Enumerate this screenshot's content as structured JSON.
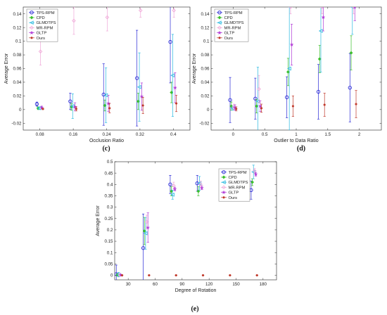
{
  "colors": {
    "TPS-RPM": "#2b2bd6",
    "CPD": "#3bbf2b",
    "GLMDTPS": "#29b9e0",
    "MR-RPM": "#f0a8d8",
    "GLTP": "#b23ad6",
    "Ours": "#c0392b"
  },
  "markers": {
    "TPS-RPM": "circle",
    "CPD": "diamond",
    "GLMDTPS": "triangle-left",
    "MR-RPM": "diamond-open",
    "GLTP": "star",
    "Ours": "dot"
  },
  "chart_data": [
    {
      "type": "scatter",
      "caption": "(c)",
      "xlabel": "Occlusion Ratio",
      "ylabel": "Average Error",
      "xlim": [
        0.04,
        0.44
      ],
      "ylim": [
        -0.03,
        0.15
      ],
      "xticks": [
        "0.08",
        "0.16",
        "0.24",
        "0.32",
        "0.4"
      ],
      "xtick_values": [
        0.08,
        0.16,
        0.24,
        0.32,
        0.4
      ],
      "yticks": [
        "-0.02",
        "0",
        "0.02",
        "0.04",
        "0.06",
        "0.08",
        "0.1",
        "0.12",
        "0.14"
      ],
      "ytick_values": [
        -0.02,
        0,
        0.02,
        0.04,
        0.06,
        0.08,
        0.1,
        0.12,
        0.14
      ],
      "legend": [
        "TPS-RPM",
        "CPD",
        "GLMDTPS",
        "MR-RPM",
        "GLTP",
        "Ours"
      ],
      "legend_position": "top-left",
      "series": [
        {
          "name": "TPS-RPM",
          "x": [
            0.08,
            0.16,
            0.24,
            0.32,
            0.4
          ],
          "y": [
            0.008,
            0.012,
            0.022,
            0.046,
            0.099
          ],
          "err": [
            0.003,
            0.012,
            0.045,
            0.07,
            0.06
          ]
        },
        {
          "name": "CPD",
          "x": [
            0.08,
            0.16,
            0.24,
            0.32,
            0.4
          ],
          "y": [
            0.002,
            0.004,
            0.006,
            0.012,
            0.025
          ],
          "err": [
            0.002,
            0.005,
            0.008,
            0.012,
            0.015
          ]
        },
        {
          "name": "GLMDTPS",
          "x": [
            0.08,
            0.16,
            0.24,
            0.32,
            0.4
          ],
          "y": [
            0.002,
            0.005,
            0.021,
            0.033,
            0.05
          ],
          "err": [
            0.002,
            0.018,
            0.04,
            0.05,
            0.06
          ]
        },
        {
          "name": "MR-RPM",
          "x": [
            0.08,
            0.16,
            0.24,
            0.32,
            0.4
          ],
          "y": [
            0.085,
            0.13,
            0.135,
            0.145,
            0.145
          ],
          "err": [
            0.02,
            0.02,
            0.02,
            0.01,
            0.01
          ]
        },
        {
          "name": "GLTP",
          "x": [
            0.08,
            0.16,
            0.24,
            0.32,
            0.4
          ],
          "y": [
            0.003,
            0.004,
            0.009,
            0.019,
            0.032
          ],
          "err": [
            0.002,
            0.006,
            0.012,
            0.02,
            0.022
          ]
        },
        {
          "name": "Ours",
          "x": [
            0.08,
            0.16,
            0.24,
            0.32,
            0.4
          ],
          "y": [
            0.001,
            0.001,
            0.002,
            0.006,
            0.009
          ],
          "err": [
            0.001,
            0.003,
            0.007,
            0.012,
            0.012
          ]
        }
      ]
    },
    {
      "type": "scatter",
      "caption": "(d)",
      "xlabel": "Outlier to Data Ratio",
      "ylabel": "Average Error",
      "xlim": [
        -0.35,
        2.35
      ],
      "ylim": [
        -0.03,
        0.15
      ],
      "xticks": [
        "0",
        "0.5",
        "1",
        "1.5",
        "2"
      ],
      "xtick_values": [
        0,
        0.5,
        1,
        1.5,
        2
      ],
      "yticks": [
        "-0.02",
        "0",
        "0.02",
        "0.04",
        "0.06",
        "0.08",
        "0.1",
        "0.12",
        "0.14"
      ],
      "ytick_values": [
        -0.02,
        0,
        0.02,
        0.04,
        0.06,
        0.08,
        0.1,
        0.12,
        0.14
      ],
      "legend": [
        "TPS-RPM",
        "CPD",
        "GLMDTPS",
        "MR-RPM",
        "GLTP",
        "Ours"
      ],
      "legend_position": "top-left",
      "series": [
        {
          "name": "TPS-RPM",
          "x": [
            0,
            0.4,
            0.9,
            1.4,
            1.9
          ],
          "y": [
            0.014,
            0.016,
            0.018,
            0.026,
            0.032
          ],
          "err": [
            0.033,
            0.03,
            0.03,
            0.04,
            0.05
          ]
        },
        {
          "name": "CPD",
          "x": [
            0,
            0.4,
            0.9,
            1.4,
            1.9
          ],
          "y": [
            0.005,
            0.005,
            0.055,
            0.074,
            0.083
          ],
          "err": [
            0.006,
            0.01,
            0.02,
            0.02,
            0.025
          ]
        },
        {
          "name": "GLMDTPS",
          "x": [
            0,
            0.4,
            0.9,
            1.4,
            1.9
          ],
          "y": [
            0.002,
            0.012,
            0.06,
            0.115,
            0.15
          ],
          "err": [
            0.003,
            0.05,
            0.09,
            0.06,
            0.04
          ]
        },
        {
          "name": "MR-RPM",
          "x": [
            0,
            0.4,
            0.9,
            1.4,
            1.9
          ],
          "y": [
            0.004,
            0.03,
            0.15,
            0.15,
            0.15
          ],
          "err": [
            0.004,
            0.02,
            0.01,
            0.01,
            0.01
          ]
        },
        {
          "name": "GLTP",
          "x": [
            0,
            0.4,
            0.9,
            1.4,
            1.9
          ],
          "y": [
            0.003,
            0.005,
            0.095,
            0.135,
            0.15
          ],
          "err": [
            0.004,
            0.008,
            0.03,
            0.02,
            0.02
          ]
        },
        {
          "name": "Ours",
          "x": [
            0,
            0.4,
            0.9,
            1.4,
            1.9
          ],
          "y": [
            0.001,
            0.002,
            0.005,
            0.007,
            0.008
          ],
          "err": [
            0.003,
            0.006,
            0.015,
            0.017,
            0.02
          ]
        }
      ]
    },
    {
      "type": "scatter",
      "caption": "(e)",
      "xlabel": "Degree of Rotation",
      "ylabel": "Average Error",
      "xlim": [
        15,
        195
      ],
      "ylim": [
        -0.02,
        0.5
      ],
      "xticks": [
        "30",
        "60",
        "90",
        "120",
        "150",
        "180"
      ],
      "xtick_values": [
        30,
        60,
        90,
        120,
        150,
        180
      ],
      "yticks": [
        "0",
        "0.05",
        "0.1",
        "0.15",
        "0.2",
        "0.25",
        "0.3",
        "0.35",
        "0.4",
        "0.45",
        "0.5"
      ],
      "ytick_values": [
        0,
        0.05,
        0.1,
        0.15,
        0.2,
        0.25,
        0.3,
        0.35,
        0.4,
        0.45,
        0.5
      ],
      "legend": [
        "TPS-RPM",
        "CPD",
        "GLMDTPS",
        "MR-RPM",
        "GLTP",
        "Ours"
      ],
      "legend_position": "inside-center",
      "series": [
        {
          "name": "TPS-RPM",
          "x": [
            20,
            50,
            80,
            110,
            140,
            170
          ],
          "y": [
            0.005,
            0.12,
            0.4,
            0.405,
            0.41,
            0.375
          ],
          "err": [
            0.04,
            0.15,
            0.04,
            0.035,
            0.035,
            0.04
          ]
        },
        {
          "name": "CPD",
          "x": [
            20,
            50,
            80,
            110,
            140,
            170
          ],
          "y": [
            0.002,
            0.195,
            0.37,
            0.37,
            0.425,
            0.41
          ],
          "err": [
            0.005,
            0.06,
            0.02,
            0.02,
            0.015,
            0.015
          ]
        },
        {
          "name": "GLMDTPS",
          "x": [
            20,
            50,
            80,
            110,
            140,
            170
          ],
          "y": [
            0.003,
            0.185,
            0.355,
            0.405,
            0.42,
            0.455
          ],
          "err": [
            0.01,
            0.07,
            0.02,
            0.03,
            0.02,
            0.03
          ]
        },
        {
          "name": "MR-RPM",
          "x": [
            20,
            50,
            80,
            110,
            140,
            170
          ],
          "y": [
            0.002,
            0.235,
            0.395,
            0.4,
            0.43,
            0.46
          ],
          "err": [
            0.005,
            0.03,
            0.015,
            0.015,
            0.01,
            0.01
          ]
        },
        {
          "name": "GLTP",
          "x": [
            20,
            50,
            80,
            110,
            140,
            170
          ],
          "y": [
            0.001,
            0.21,
            0.38,
            0.385,
            0.43,
            0.445
          ],
          "err": [
            0.003,
            0.065,
            0.008,
            0.008,
            0.008,
            0.008
          ]
        },
        {
          "name": "Ours",
          "x": [
            20,
            50,
            80,
            110,
            140,
            170
          ],
          "y": [
            0.0,
            0.0,
            0.0,
            0.0,
            0.0,
            0.0
          ],
          "err": [
            0.001,
            0.001,
            0.001,
            0.001,
            0.001,
            0.001
          ]
        }
      ]
    }
  ]
}
